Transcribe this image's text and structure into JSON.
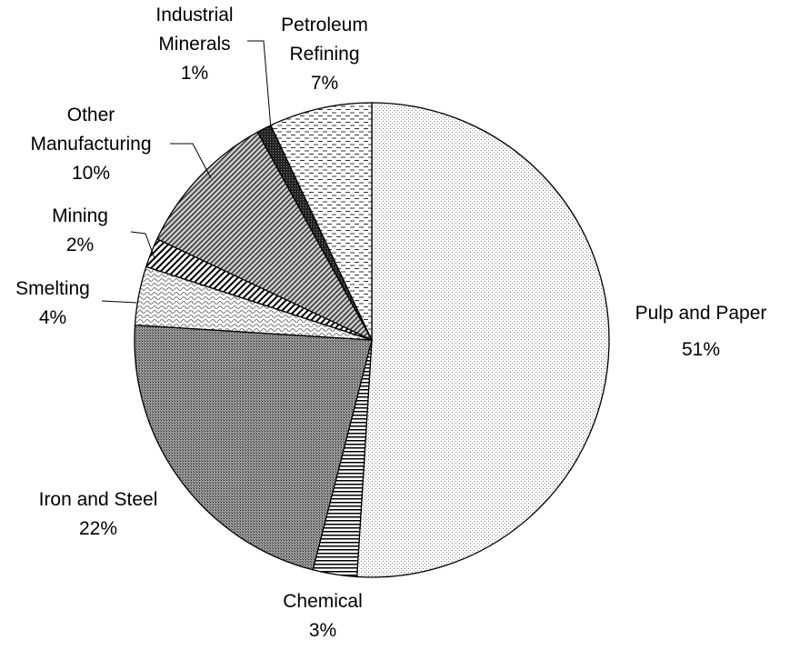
{
  "chart_data": {
    "type": "pie",
    "categories": [
      "Pulp and Paper",
      "Chemical",
      "Iron and Steel",
      "Smelting",
      "Mining",
      "Other Manufacturing",
      "Industrial Minerals",
      "Petroleum Refining"
    ],
    "values": [
      51,
      3,
      22,
      4,
      2,
      10,
      1,
      7
    ],
    "value_labels": [
      "51%",
      "3%",
      "22%",
      "4%",
      "2%",
      "10%",
      "1%",
      "7%"
    ]
  }
}
